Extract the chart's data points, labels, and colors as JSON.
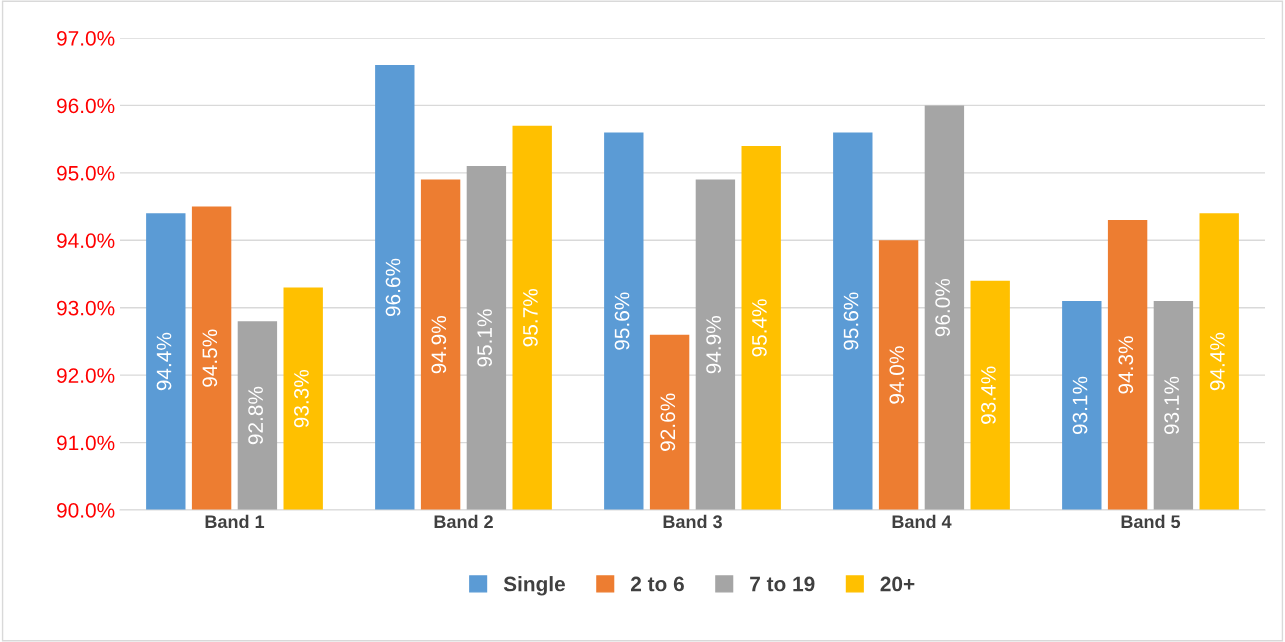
{
  "chart_data": {
    "type": "bar",
    "categories": [
      "Band 1",
      "Band 2",
      "Band 3",
      "Band 4",
      "Band 5"
    ],
    "series": [
      {
        "name": "Single",
        "color": "#5b9bd5",
        "values": [
          94.4,
          96.6,
          95.6,
          95.6,
          93.1
        ],
        "value_labels": [
          "94.4%",
          "96.6%",
          "95.6%",
          "95.6%",
          "93.1%"
        ]
      },
      {
        "name": "2 to 6",
        "color": "#ed7d31",
        "values": [
          94.5,
          94.9,
          92.6,
          94.0,
          94.3
        ],
        "value_labels": [
          "94.5%",
          "94.9%",
          "92.6%",
          "94.0%",
          "94.3%"
        ]
      },
      {
        "name": "7 to 19",
        "color": "#a5a5a5",
        "values": [
          92.8,
          95.1,
          94.9,
          96.0,
          93.1
        ],
        "value_labels": [
          "92.8%",
          "95.1%",
          "94.9%",
          "96.0%",
          "93.1%"
        ]
      },
      {
        "name": "20+",
        "color": "#ffc000",
        "values": [
          93.3,
          95.7,
          95.4,
          93.4,
          94.4
        ],
        "value_labels": [
          "93.3%",
          "95.7%",
          "95.4%",
          "93.4%",
          "94.4%"
        ]
      }
    ],
    "ylim": [
      90,
      97
    ],
    "yticks": [
      {
        "value": 90,
        "label": "90.0%"
      },
      {
        "value": 91,
        "label": "91.0%"
      },
      {
        "value": 92,
        "label": "92.0%"
      },
      {
        "value": 93,
        "label": "93.0%"
      },
      {
        "value": 94,
        "label": "94.0%"
      },
      {
        "value": 95,
        "label": "95.0%"
      },
      {
        "value": 96,
        "label": "96.0%"
      },
      {
        "value": 97,
        "label": "97.0%"
      }
    ],
    "grid": "y",
    "legend": "bottom"
  }
}
